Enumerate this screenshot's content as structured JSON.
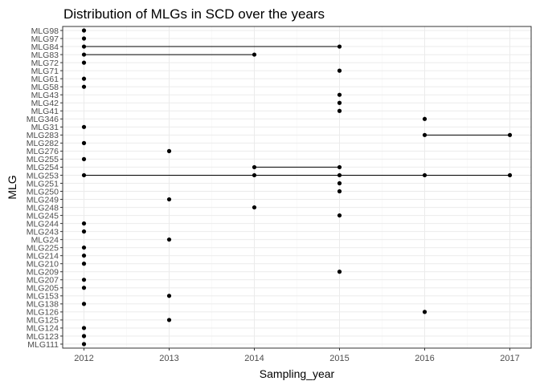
{
  "chart_data": {
    "type": "scatter",
    "title": "Distribution of MLGs in SCD over the years",
    "xlabel": "Sampling_year",
    "ylabel": "MLG",
    "xlim": [
      2011.75,
      2017.25
    ],
    "x_ticks": [
      2012,
      2013,
      2014,
      2015,
      2016,
      2017
    ],
    "categories": [
      "MLG98",
      "MLG97",
      "MLG84",
      "MLG83",
      "MLG72",
      "MLG71",
      "MLG61",
      "MLG58",
      "MLG43",
      "MLG42",
      "MLG41",
      "MLG346",
      "MLG31",
      "MLG283",
      "MLG282",
      "MLG276",
      "MLG255",
      "MLG254",
      "MLG253",
      "MLG251",
      "MLG250",
      "MLG249",
      "MLG248",
      "MLG245",
      "MLG244",
      "MLG243",
      "MLG24",
      "MLG225",
      "MLG214",
      "MLG210",
      "MLG209",
      "MLG207",
      "MLG205",
      "MLG153",
      "MLG138",
      "MLG126",
      "MLG125",
      "MLG124",
      "MLG123",
      "MLG111"
    ],
    "points": [
      {
        "mlg": "MLG98",
        "years": [
          2012
        ]
      },
      {
        "mlg": "MLG97",
        "years": [
          2012
        ]
      },
      {
        "mlg": "MLG84",
        "years": [
          2012,
          2015
        ]
      },
      {
        "mlg": "MLG83",
        "years": [
          2012,
          2014
        ]
      },
      {
        "mlg": "MLG72",
        "years": [
          2012
        ]
      },
      {
        "mlg": "MLG71",
        "years": [
          2015
        ]
      },
      {
        "mlg": "MLG61",
        "years": [
          2012
        ]
      },
      {
        "mlg": "MLG58",
        "years": [
          2012
        ]
      },
      {
        "mlg": "MLG43",
        "years": [
          2015
        ]
      },
      {
        "mlg": "MLG42",
        "years": [
          2015
        ]
      },
      {
        "mlg": "MLG41",
        "years": [
          2015
        ]
      },
      {
        "mlg": "MLG346",
        "years": [
          2016
        ]
      },
      {
        "mlg": "MLG31",
        "years": [
          2012
        ]
      },
      {
        "mlg": "MLG283",
        "years": [
          2016,
          2017
        ]
      },
      {
        "mlg": "MLG282",
        "years": [
          2012
        ]
      },
      {
        "mlg": "MLG276",
        "years": [
          2013
        ]
      },
      {
        "mlg": "MLG255",
        "years": [
          2012
        ]
      },
      {
        "mlg": "MLG254",
        "years": [
          2014,
          2015
        ]
      },
      {
        "mlg": "MLG253",
        "years": [
          2012,
          2014,
          2015,
          2016,
          2017
        ]
      },
      {
        "mlg": "MLG251",
        "years": [
          2015
        ]
      },
      {
        "mlg": "MLG250",
        "years": [
          2015
        ]
      },
      {
        "mlg": "MLG249",
        "years": [
          2013
        ]
      },
      {
        "mlg": "MLG248",
        "years": [
          2014
        ]
      },
      {
        "mlg": "MLG245",
        "years": [
          2015
        ]
      },
      {
        "mlg": "MLG244",
        "years": [
          2012
        ]
      },
      {
        "mlg": "MLG243",
        "years": [
          2012
        ]
      },
      {
        "mlg": "MLG24",
        "years": [
          2013
        ]
      },
      {
        "mlg": "MLG225",
        "years": [
          2012
        ]
      },
      {
        "mlg": "MLG214",
        "years": [
          2012
        ]
      },
      {
        "mlg": "MLG210",
        "years": [
          2012
        ]
      },
      {
        "mlg": "MLG209",
        "years": [
          2015
        ]
      },
      {
        "mlg": "MLG207",
        "years": [
          2012
        ]
      },
      {
        "mlg": "MLG205",
        "years": [
          2012
        ]
      },
      {
        "mlg": "MLG153",
        "years": [
          2013
        ]
      },
      {
        "mlg": "MLG138",
        "years": [
          2012
        ]
      },
      {
        "mlg": "MLG126",
        "years": [
          2016
        ]
      },
      {
        "mlg": "MLG125",
        "years": [
          2013
        ]
      },
      {
        "mlg": "MLG124",
        "years": [
          2012
        ]
      },
      {
        "mlg": "MLG123",
        "years": [
          2012
        ]
      },
      {
        "mlg": "MLG111",
        "years": [
          2012
        ]
      }
    ],
    "colors": {
      "point": "#000000",
      "line": "#000000",
      "panel_border": "#333333",
      "grid_major": "#ebebeb",
      "grid_minor": "#f5f5f5",
      "tick_label": "#4d4d4d"
    }
  }
}
